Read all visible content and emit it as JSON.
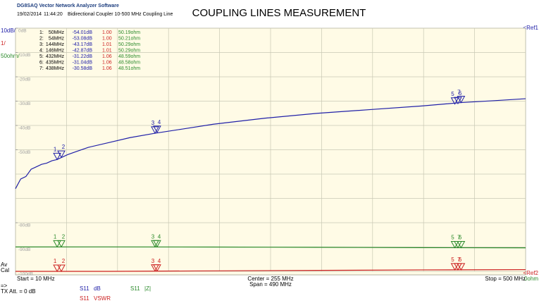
{
  "header": {
    "app": "DG8SAQ Vector Network Analyzer Software",
    "date": "19/02/2014",
    "time": "11:44:20",
    "description": "Bidirectional Coupler 10-500 MHz   Coupling Line",
    "title": "COUPLING LINES MEASUREMENT"
  },
  "left_labels": {
    "db_scale": "10dB/",
    "vswr_scale": "1/",
    "z_scale": "50ohm/",
    "av": "Av",
    "cal": "Cal",
    "arrow": "=>",
    "tx": "TX Att. = 0 dB"
  },
  "right_labels": {
    "ref1": "<Ref1",
    "ref2": "<Ref2",
    "ref3": "0ohm"
  },
  "footer": {
    "start": "Start = 10 MHz",
    "center": "Center = 255 MHz",
    "span": "Span = 490 MHz",
    "stop": "Stop = 500 MHz"
  },
  "legend": [
    {
      "trace": "S11",
      "unit": "dB"
    },
    {
      "trace": "S11",
      "unit": "|Z|"
    },
    {
      "trace": "S11",
      "unit": "VSWR"
    }
  ],
  "chart_data": {
    "type": "line",
    "xlim": [
      10,
      500
    ],
    "ylim": [
      -100,
      0
    ],
    "y2lim": [
      0,
      500
    ],
    "y3lim": [
      1,
      11
    ],
    "grid_divisions": 10,
    "yticks": [
      {
        "value": 0,
        "label": "0dB"
      },
      {
        "value": -10,
        "label": "-10dB"
      },
      {
        "value": -20,
        "label": "-20dB"
      },
      {
        "value": -30,
        "label": "-30dB"
      },
      {
        "value": -40,
        "label": "-40dB"
      },
      {
        "value": -50,
        "label": "-50dB"
      },
      {
        "value": -80,
        "label": "-80dB"
      },
      {
        "value": -90,
        "label": "-90dB"
      },
      {
        "value": -100,
        "label": "-100dB"
      }
    ],
    "series": [
      {
        "name": "S11 dB",
        "color": "#2020a8",
        "x": [
          10,
          15,
          20,
          25,
          30,
          35,
          40,
          45,
          50,
          60,
          70,
          80,
          100,
          120,
          144,
          170,
          200,
          250,
          300,
          350,
          400,
          438,
          470,
          500
        ],
        "values": [
          -66,
          -62,
          -61,
          -58,
          -57,
          -56,
          -55.5,
          -54.5,
          -54,
          -52,
          -50.5,
          -49,
          -47,
          -45,
          -43.2,
          -41.5,
          -39.5,
          -37,
          -35,
          -33.5,
          -32,
          -30.6,
          -29.8,
          -29
        ]
      },
      {
        "name": "S11 |Z|",
        "color": "#2a8a2a",
        "axis": "y2",
        "x": [
          10,
          100,
          200,
          300,
          400,
          500
        ],
        "values": [
          50.2,
          50.3,
          50,
          49.5,
          48.7,
          48.4
        ]
      },
      {
        "name": "S11 VSWR",
        "color": "#cc2020",
        "axis": "y3",
        "x": [
          10,
          100,
          200,
          300,
          400,
          500
        ],
        "values": [
          1,
          1,
          1.02,
          1.04,
          1.06,
          1.07
        ]
      }
    ],
    "markers": {
      "ids": [
        "1",
        "2",
        "3",
        "4",
        "5",
        "6",
        "7"
      ],
      "table_labels": [
        "1:",
        "2:",
        "3:",
        "4:",
        "5:",
        "6:",
        "7:"
      ],
      "x": [
        50,
        54,
        144,
        146,
        432,
        435,
        438
      ],
      "x_labels": [
        "50MHz",
        "54MHz",
        "144MHz",
        "146MHz",
        "432MHz",
        "435MHz",
        "438MHz"
      ],
      "db": [
        -54.01,
        -53.08,
        -43.17,
        -42.87,
        -31.22,
        -31.04,
        -30.58
      ],
      "db_labels": [
        "-54.01dB",
        "-53.08dB",
        "-43.17dB",
        "-42.87dB",
        "-31.22dB",
        "-31.04dB",
        "-30.58dB"
      ],
      "vswr": [
        1,
        1,
        1.01,
        1.01,
        1.06,
        1.06,
        1.06
      ],
      "vswr_labels": [
        "1.00",
        "1.00",
        "1.01",
        "1.01",
        "1.06",
        "1.06",
        "1.06"
      ],
      "z": [
        50.19,
        50.21,
        50.29,
        50.29,
        48.59,
        48.58,
        48.51
      ],
      "z_labels": [
        "50.19ohm",
        "50.21ohm",
        "50.29ohm",
        "50.29ohm",
        "48.59ohm",
        "48.58ohm",
        "48.51ohm"
      ]
    }
  }
}
